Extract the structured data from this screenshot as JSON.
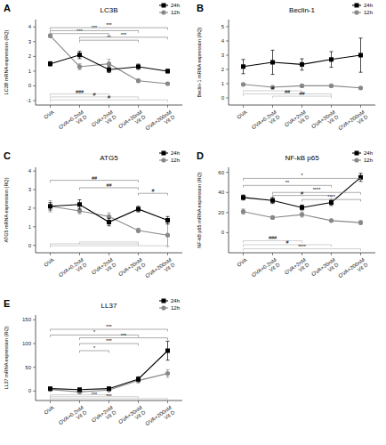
{
  "chart_data": [
    {
      "type": "line",
      "panel_label": "A",
      "title": "LC3B",
      "y_label": "LC3B mRNA expression (RQ)",
      "categories": [
        "OVA",
        "OVA+0.2nM\nVit D",
        "OVA+2nM\nVit D",
        "OVA+20nM\nVit D",
        "OVA+200nM\nVit D"
      ],
      "ylim": [
        -1.3,
        4.5
      ],
      "yticks": [
        -1,
        0,
        1,
        2,
        3,
        4
      ],
      "legend": "upper right",
      "grid": false,
      "series": [
        {
          "name": "24h",
          "color": "#000000",
          "marker": "square",
          "values": [
            1.5,
            2.1,
            1.1,
            1.3,
            1.0
          ],
          "errors": [
            0.15,
            0.25,
            0.2,
            0.18,
            0.12
          ]
        },
        {
          "name": "12h",
          "color": "#888888",
          "marker": "circle",
          "values": [
            3.4,
            1.3,
            1.5,
            0.35,
            0.15
          ],
          "errors": [
            0.12,
            0.2,
            0.3,
            0.12,
            0.08
          ]
        }
      ],
      "annotations": [
        {
          "x1": 0,
          "x2": 2,
          "y": 3.55,
          "label": "***",
          "color": "#888888"
        },
        {
          "x1": 0,
          "x2": 3,
          "y": 3.75,
          "label": "***",
          "color": "#888888"
        },
        {
          "x1": 0,
          "x2": 4,
          "y": 3.95,
          "label": "***",
          "color": "#888888"
        },
        {
          "x1": 1,
          "x2": 3,
          "y": 3.1,
          "label": "**",
          "color": "#888888"
        },
        {
          "x1": 1,
          "x2": 4,
          "y": 3.3,
          "label": "***",
          "color": "#888888"
        },
        {
          "x1": 0,
          "x2": 2,
          "y": -0.55,
          "label": "###",
          "color": "#bbbbbb"
        },
        {
          "x1": 0,
          "x2": 3,
          "y": -0.75,
          "label": "#",
          "color": "#bbbbbb"
        },
        {
          "x1": 0,
          "x2": 4,
          "y": -0.95,
          "label": "#",
          "color": "#bbbbbb"
        }
      ]
    },
    {
      "type": "line",
      "panel_label": "B",
      "title": "Beclin-1",
      "y_label": "Beclin-1 mRNA expression (RQ)",
      "categories": [
        "OVA",
        "OVA+0.2nM\nVit D",
        "OVA+2nM\nVit D",
        "OVA+20nM\nVit D",
        "OVA+200nM\nVit D"
      ],
      "ylim": [
        -0.5,
        5.5
      ],
      "yticks": [
        0,
        1,
        2,
        3,
        4,
        5
      ],
      "legend": "upper right",
      "grid": false,
      "series": [
        {
          "name": "24h",
          "color": "#000000",
          "marker": "square",
          "values": [
            2.2,
            2.5,
            2.35,
            2.7,
            3.0
          ],
          "errors": [
            0.5,
            0.85,
            0.4,
            0.55,
            1.2
          ]
        },
        {
          "name": "12h",
          "color": "#888888",
          "marker": "circle",
          "values": [
            0.95,
            0.75,
            0.85,
            0.85,
            0.7
          ],
          "errors": [
            0.08,
            0.08,
            0.1,
            0.08,
            0.08
          ]
        }
      ],
      "annotations": [
        {
          "x1": 0,
          "x2": 2,
          "y": 0.5,
          "label": "#",
          "color": "#bbbbbb"
        },
        {
          "x1": 0,
          "x2": 3,
          "y": 0.28,
          "label": "##",
          "color": "#bbbbbb"
        },
        {
          "x1": 1,
          "x2": 3,
          "y": 0.12,
          "label": "##",
          "color": "#bbbbbb"
        }
      ]
    },
    {
      "type": "line",
      "panel_label": "C",
      "title": "ATG5",
      "y_label": "ATG5 mRNA expression (RQ)",
      "categories": [
        "OVA",
        "OVA+0.2nM\nVit D",
        "OVA+2nM\nVit D",
        "OVA+20nM\nVit D",
        "OVA+200nM\nVit D"
      ],
      "ylim": [
        -0.4,
        4.2
      ],
      "yticks": [
        0,
        1,
        2,
        3,
        4
      ],
      "legend": "upper right",
      "grid": false,
      "series": [
        {
          "name": "24h",
          "color": "#000000",
          "marker": "square",
          "values": [
            2.1,
            2.2,
            1.25,
            1.95,
            1.35
          ],
          "errors": [
            0.2,
            0.25,
            0.2,
            0.15,
            0.2
          ]
        },
        {
          "name": "12h",
          "color": "#888888",
          "marker": "circle",
          "values": [
            2.1,
            1.85,
            1.55,
            0.8,
            0.55
          ],
          "errors": [
            0.3,
            0.15,
            0.2,
            0.12,
            0.6
          ]
        }
      ],
      "annotations": [
        {
          "x1": 0,
          "x2": 3,
          "y": 3.5,
          "label": "##",
          "color": "#888888"
        },
        {
          "x1": 1,
          "x2": 3,
          "y": 3.1,
          "label": "##",
          "color": "#888888"
        },
        {
          "x1": 3,
          "x2": 4,
          "y": 2.8,
          "label": "#",
          "color": "#888888"
        },
        {
          "x1": 1,
          "x2": 3,
          "y": 0.18,
          "color": "#bbbbbb"
        },
        {
          "x1": 0,
          "x2": 3,
          "y": 0.08,
          "color": "#bbbbbb"
        },
        {
          "x1": 0,
          "x2": 4,
          "y": -0.02,
          "color": "#bbbbbb"
        }
      ]
    },
    {
      "type": "line",
      "panel_label": "D",
      "title": "NF-kB p65",
      "y_label": "NF-kB p65 mRNA expression (RQ)",
      "categories": [
        "OVA",
        "OVA+0.2nM\nVit D",
        "OVA+2nM\nVit D",
        "OVA+20nM\nVit D",
        "OVA+200nM\nVit D"
      ],
      "ylim": [
        -20,
        65
      ],
      "yticks": [
        0,
        20,
        40,
        60
      ],
      "legend": "upper right",
      "grid": false,
      "series": [
        {
          "name": "24h",
          "color": "#000000",
          "marker": "square",
          "values": [
            35,
            32,
            25,
            30,
            55
          ],
          "errors": [
            2.5,
            3,
            2.5,
            3,
            4
          ]
        },
        {
          "name": "12h",
          "color": "#888888",
          "marker": "circle",
          "values": [
            21,
            15,
            18,
            12,
            10
          ],
          "errors": [
            2.5,
            1.5,
            2.5,
            1.5,
            2
          ]
        }
      ],
      "annotations": [
        {
          "x1": 0,
          "x2": 3,
          "y": 47,
          "label": "**",
          "color": "#888888"
        },
        {
          "x1": 0,
          "x2": 4,
          "y": 54,
          "label": "*",
          "color": "#888888"
        },
        {
          "x1": 1,
          "x2": 4,
          "y": 40,
          "label": "****",
          "color": "#888888"
        },
        {
          "x1": 2,
          "x2": 4,
          "y": 33,
          "label": "****",
          "color": "#888888"
        },
        {
          "x1": 1,
          "x2": 3,
          "y": 37,
          "label": "#",
          "color": "#888888"
        },
        {
          "x1": 0,
          "x2": 2,
          "y": -8,
          "label": "###",
          "color": "#bbbbbb"
        },
        {
          "x1": 0,
          "x2": 3,
          "y": -12,
          "label": "#",
          "color": "#bbbbbb"
        },
        {
          "x1": 0,
          "x2": 4,
          "y": -16,
          "label": "****",
          "color": "#bbbbbb"
        }
      ]
    },
    {
      "type": "line",
      "panel_label": "E",
      "title": "LL37",
      "y_label": "LL37 mRNA expression (RQ)",
      "categories": [
        "OVA",
        "OVA+0.2nM\nVit D",
        "OVA+2nM\nVit D",
        "OVA+20nM\nVit D",
        "OVA+200nM\nVit D"
      ],
      "ylim": [
        -20,
        160
      ],
      "yticks": [
        0,
        50,
        100,
        150
      ],
      "legend": "upper right",
      "grid": false,
      "series": [
        {
          "name": "24h",
          "color": "#000000",
          "marker": "square",
          "values": [
            5,
            3,
            5,
            25,
            85
          ],
          "errors": [
            2,
            2,
            3,
            5,
            20
          ]
        },
        {
          "name": "12h",
          "color": "#888888",
          "marker": "circle",
          "values": [
            3,
            -2,
            2,
            22,
            37
          ],
          "errors": [
            1,
            1,
            2,
            5,
            8
          ]
        }
      ],
      "annotations": [
        {
          "x1": 0,
          "x2": 3,
          "y": 118,
          "label": "*",
          "color": "#888888"
        },
        {
          "x1": 0,
          "x2": 4,
          "y": 130,
          "label": "***",
          "color": "#888888"
        },
        {
          "x1": 1,
          "x2": 3,
          "y": 100,
          "label": "***",
          "color": "#888888"
        },
        {
          "x1": 1,
          "x2": 4,
          "y": 112,
          "label": "***",
          "color": "#888888"
        },
        {
          "x1": 1,
          "x2": 2,
          "y": 85,
          "label": "*",
          "color": "#888888"
        },
        {
          "x1": 0,
          "x2": 2,
          "y": -8,
          "label": "***",
          "color": "#bbbbbb"
        },
        {
          "x1": 0,
          "x2": 3,
          "y": -12,
          "label": "***",
          "color": "#bbbbbb"
        },
        {
          "x1": 0,
          "x2": 4,
          "y": -16,
          "label": "***",
          "color": "#bbbbbb"
        }
      ]
    }
  ]
}
